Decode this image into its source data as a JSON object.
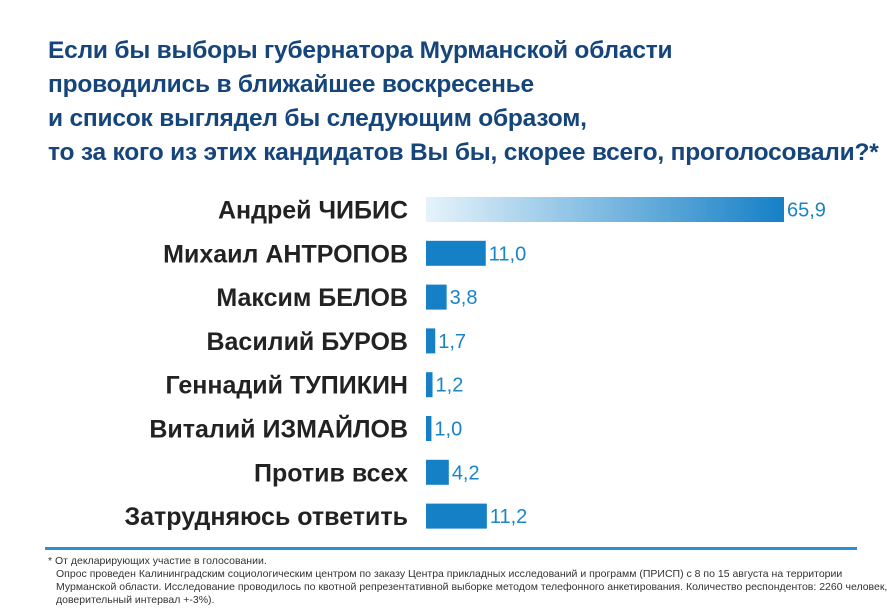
{
  "title_lines": [
    "Если бы выборы губернатора Мурманской области",
    "проводились в ближайшее воскресенье",
    "и список выглядел бы следующим образом,",
    "то за кого из этих кандидатов Вы бы, скорее всего, проголосовали?*"
  ],
  "chart_data": {
    "type": "bar",
    "orientation": "horizontal",
    "categories": [
      "Андрей ЧИБИС",
      "Михаил АНТРОПОВ",
      "Максим БЕЛОВ",
      "Василий БУРОВ",
      "Геннадий ТУПИКИН",
      "Виталий ИЗМАЙЛОВ",
      "Против всех",
      "Затрудняюсь ответить"
    ],
    "values": [
      65.9,
      11.0,
      3.8,
      1.7,
      1.2,
      1.0,
      4.2,
      11.2
    ],
    "value_labels": [
      "65,9",
      "11,0",
      "3,8",
      "1,7",
      "1,2",
      "1,0",
      "4,2",
      "11,2"
    ],
    "xlim": [
      0,
      65.9
    ],
    "grid": false,
    "colors": {
      "bar_start": "#e6f3fb",
      "bar_end": "#1580c6",
      "label": "#222222",
      "value": "#1a84c8"
    }
  },
  "footnote": {
    "asterisk": "* От декларирующих участие в голосовании.",
    "lines": [
      "Опрос проведен Калининградским социологическим центром по заказу Центра прикладных исследований и программ (ПРИСП) с 8 по 15 августа на территории",
      "Мурманской области. Исследование проводилось по квотной репрезентативной выборке методом телефонного анкетирования. Количество респондентов: 2260 человек,",
      "доверительный интервал +-3%)."
    ]
  },
  "colors": {
    "title": "#15457a",
    "rule": "#2c8fd3"
  }
}
